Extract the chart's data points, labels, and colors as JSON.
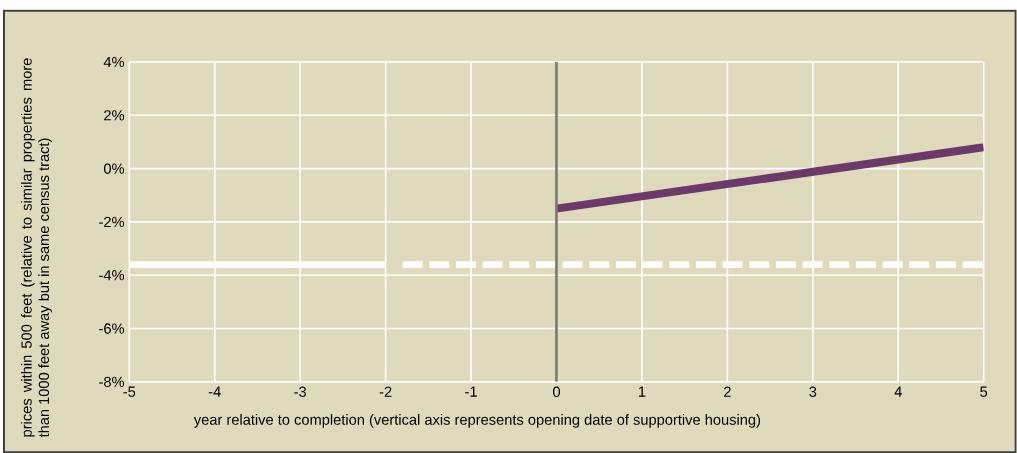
{
  "chart_data": {
    "type": "line",
    "xlabel": "year relative to completion (vertical axis represents opening date of supportive housing)",
    "ylabel": "prices within 500 feet (relative to similar properties more than 1000 feet away but in same census tract)",
    "xlim": [
      -5,
      5
    ],
    "ylim": [
      -8,
      4
    ],
    "xticks": [
      -5,
      -4,
      -3,
      -2,
      -1,
      0,
      1,
      2,
      3,
      4,
      5
    ],
    "yticks": [
      {
        "value": -8,
        "label": "-8%"
      },
      {
        "value": -6,
        "label": "-6%"
      },
      {
        "value": -4,
        "label": "-4%"
      },
      {
        "value": -2,
        "label": "-2%"
      },
      {
        "value": 0,
        "label": "0%"
      },
      {
        "value": 2,
        "label": "2%"
      },
      {
        "value": 4,
        "label": "4%"
      }
    ],
    "grid": true,
    "marker": "none",
    "series": [
      {
        "color": "#ffffff",
        "x": [
          -5,
          -2
        ],
        "values": [
          -3.6,
          -3.6
        ],
        "line_style": "solid"
      },
      {
        "color": "#ffffff",
        "x": [
          -1.8,
          5
        ],
        "values": [
          -3.6,
          -3.6
        ],
        "line_style": "dashed"
      },
      {
        "color": "#6b3a6b",
        "x": [
          0,
          5
        ],
        "values": [
          -1.5,
          0.8
        ],
        "line_style": "solid"
      }
    ],
    "ref_lines": [
      {
        "axis": "x",
        "value": 0,
        "color": "#777777"
      }
    ]
  }
}
